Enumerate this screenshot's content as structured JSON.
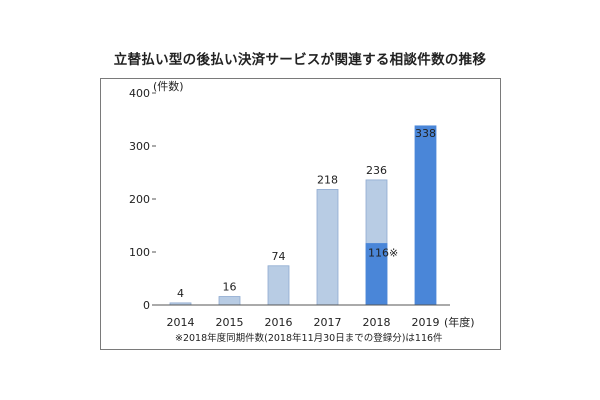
{
  "title": "立替払い型の後払い決済サービスが関連する相談件数の推移",
  "y_unit": "(件数)",
  "x_unit": "(年度)",
  "footnote": "※2018年度同期件数(2018年11月30日までの登録分)は116件",
  "colors": {
    "light_bar": "#b8cce4",
    "dark_bar": "#4a86d8",
    "bar_border": "#8eaad0",
    "axis": "#555555"
  },
  "chart_data": {
    "type": "bar",
    "title": "立替払い型の後払い決済サービスが関連する相談件数の推移",
    "xlabel": "(年度)",
    "ylabel": "(件数)",
    "ylim": [
      0,
      400
    ],
    "yticks": [
      0,
      100,
      200,
      300,
      400
    ],
    "categories": [
      "2014",
      "2015",
      "2016",
      "2017",
      "2018",
      "2019"
    ],
    "series": [
      {
        "values": [
          4,
          16,
          74,
          218,
          236,
          338
        ],
        "labels": [
          "4",
          "16",
          "74",
          "218",
          "236",
          "338"
        ]
      }
    ],
    "overlay": {
      "category": "2018",
      "value": 116,
      "label": "116※"
    },
    "dark_categories": [
      "2019"
    ]
  }
}
